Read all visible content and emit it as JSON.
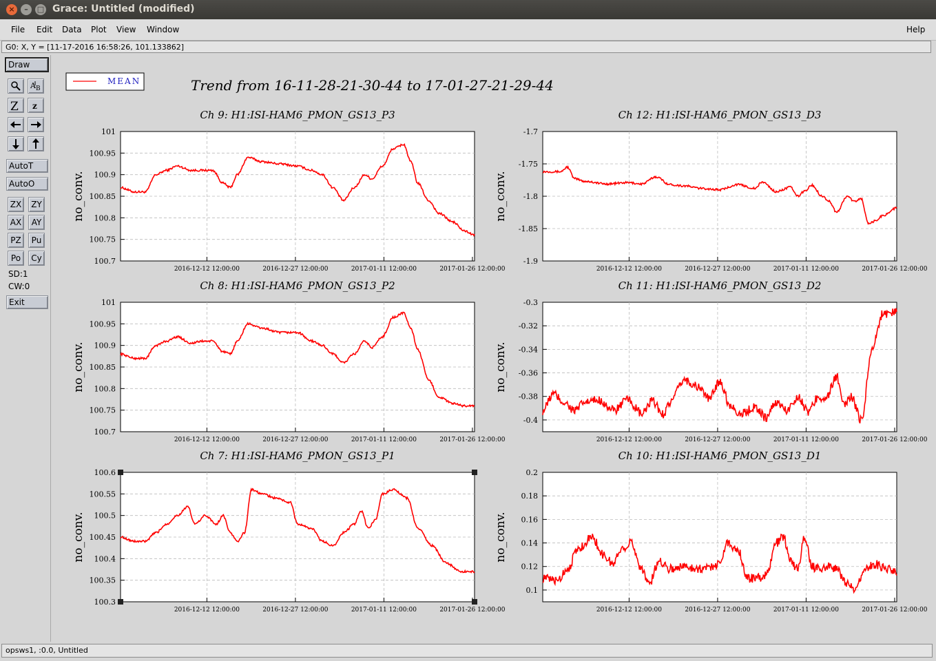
{
  "window": {
    "title": "Grace: Untitled (modified)",
    "close_glyph": "×",
    "min_glyph": "–",
    "max_glyph": "□"
  },
  "menu": {
    "file": "File",
    "edit": "Edit",
    "data": "Data",
    "plot": "Plot",
    "view": "View",
    "window": "Window",
    "help": "Help"
  },
  "locator": "G0: X, Y = [11-17-2016 16:58:26, 101.133862]",
  "toolbar": {
    "draw": "Draw",
    "icons": [
      "magnifier-icon",
      "text-ab-icon",
      "zoom-z-icon",
      "zoom-z-small-icon",
      "arrow-left-icon",
      "arrow-right-icon",
      "arrow-down-icon",
      "arrow-up-icon"
    ],
    "autot": "AutoT",
    "autoo": "AutoO",
    "zx": "ZX",
    "zy": "ZY",
    "ax": "AX",
    "ay": "AY",
    "pz": "PZ",
    "pu": "Pu",
    "po": "Po",
    "cy": "Cy",
    "sd": "SD:1",
    "cw": "CW:0",
    "exit": "Exit"
  },
  "status": "opsws1, :0.0, Untitled",
  "legend": {
    "label": "MEAN",
    "color": "#ff0000"
  },
  "main_title": "Trend from 16-11-28-21-30-44 to 17-01-27-21-29-44",
  "chart_data": [
    {
      "type": "line",
      "title": "Ch 9: H1:ISI-HAM6_PMON_GS13_P3",
      "ylabel": "no_conv.",
      "xlabel": "",
      "ylim": [
        100.7,
        101
      ],
      "yticks": [
        "100.7",
        "100.75",
        "100.8",
        "100.85",
        "100.9",
        "100.95",
        "101"
      ],
      "xticks": [
        "2016-12-12 12:00:00",
        "2016-12-27 12:00:00",
        "2017-01-11 12:00:00",
        "2017-01-26 12:00:00"
      ],
      "grid": true,
      "series": [
        {
          "name": "MEAN",
          "color": "#ff0000",
          "x": [
            0,
            0.04,
            0.07,
            0.1,
            0.13,
            0.16,
            0.2,
            0.23,
            0.26,
            0.29,
            0.31,
            0.33,
            0.36,
            0.4,
            0.45,
            0.5,
            0.54,
            0.57,
            0.6,
            0.63,
            0.66,
            0.69,
            0.71,
            0.74,
            0.77,
            0.8,
            0.82,
            0.84,
            0.87,
            0.9,
            0.94,
            0.97,
            1
          ],
          "y": [
            100.87,
            100.86,
            100.86,
            100.9,
            100.91,
            100.92,
            100.91,
            100.91,
            100.91,
            100.88,
            100.87,
            100.9,
            100.94,
            100.93,
            100.925,
            100.92,
            100.91,
            100.9,
            100.87,
            100.84,
            100.87,
            100.9,
            100.89,
            100.92,
            100.96,
            100.97,
            100.93,
            100.88,
            100.84,
            100.81,
            100.79,
            100.77,
            100.76
          ]
        }
      ]
    },
    {
      "type": "line",
      "title": "Ch 12: H1:ISI-HAM6_PMON_GS13_D3",
      "ylabel": "no_conv.",
      "xlabel": "",
      "ylim": [
        -1.9,
        -1.7
      ],
      "yticks": [
        "-1.9",
        "-1.85",
        "-1.8",
        "-1.75",
        "-1.7"
      ],
      "xticks": [
        "2016-12-12 12:00:00",
        "2016-12-27 12:00:00",
        "2017-01-11 12:00:00",
        "2017-01-26 12:00:00"
      ],
      "grid": true,
      "series": [
        {
          "name": "MEAN",
          "color": "#ff0000",
          "x": [
            0,
            0.05,
            0.07,
            0.09,
            0.12,
            0.18,
            0.24,
            0.28,
            0.32,
            0.36,
            0.4,
            0.45,
            0.5,
            0.55,
            0.6,
            0.62,
            0.66,
            0.7,
            0.72,
            0.74,
            0.76,
            0.79,
            0.81,
            0.83,
            0.86,
            0.88,
            0.9,
            0.92,
            0.94,
            0.96,
            1
          ],
          "y": [
            -1.762,
            -1.762,
            -1.755,
            -1.773,
            -1.777,
            -1.781,
            -1.779,
            -1.781,
            -1.77,
            -1.782,
            -1.784,
            -1.788,
            -1.79,
            -1.782,
            -1.788,
            -1.778,
            -1.793,
            -1.786,
            -1.8,
            -1.792,
            -1.783,
            -1.8,
            -1.808,
            -1.825,
            -1.8,
            -1.808,
            -1.804,
            -1.843,
            -1.838,
            -1.83,
            -1.818
          ]
        }
      ]
    },
    {
      "type": "line",
      "title": "Ch 8: H1:ISI-HAM6_PMON_GS13_P2",
      "ylabel": "no_conv.",
      "xlabel": "",
      "ylim": [
        100.7,
        101
      ],
      "yticks": [
        "100.7",
        "100.75",
        "100.8",
        "100.85",
        "100.9",
        "100.95",
        "101"
      ],
      "xticks": [
        "2016-12-12 12:00:00",
        "2016-12-27 12:00:00",
        "2017-01-11 12:00:00",
        "2017-01-26 12:00:00"
      ],
      "grid": true,
      "series": [
        {
          "name": "MEAN",
          "color": "#ff0000",
          "x": [
            0,
            0.04,
            0.07,
            0.1,
            0.13,
            0.16,
            0.2,
            0.23,
            0.26,
            0.29,
            0.31,
            0.33,
            0.36,
            0.4,
            0.45,
            0.5,
            0.54,
            0.57,
            0.6,
            0.63,
            0.66,
            0.69,
            0.71,
            0.74,
            0.77,
            0.8,
            0.82,
            0.84,
            0.87,
            0.9,
            0.94,
            0.97,
            1
          ],
          "y": [
            100.88,
            100.87,
            100.87,
            100.9,
            100.91,
            100.92,
            100.905,
            100.91,
            100.91,
            100.885,
            100.88,
            100.91,
            100.95,
            100.94,
            100.93,
            100.93,
            100.91,
            100.9,
            100.88,
            100.86,
            100.88,
            100.91,
            100.895,
            100.92,
            100.965,
            100.975,
            100.94,
            100.89,
            100.82,
            100.78,
            100.765,
            100.76,
            100.76
          ]
        }
      ]
    },
    {
      "type": "line",
      "title": "Ch 11: H1:ISI-HAM6_PMON_GS13_D2",
      "ylabel": "no_conv.",
      "xlabel": "",
      "ylim": [
        -0.41,
        -0.3
      ],
      "yticks": [
        "-0.4",
        "-0.38",
        "-0.36",
        "-0.34",
        "-0.32",
        "-0.3"
      ],
      "xticks": [
        "2016-12-12 12:00:00",
        "2016-12-27 12:00:00",
        "2017-01-11 12:00:00",
        "2017-01-26 12:00:00"
      ],
      "grid": true,
      "series": [
        {
          "name": "MEAN",
          "color": "#ff0000",
          "x": [
            0,
            0.03,
            0.06,
            0.09,
            0.12,
            0.16,
            0.2,
            0.24,
            0.28,
            0.31,
            0.34,
            0.36,
            0.4,
            0.44,
            0.47,
            0.5,
            0.53,
            0.56,
            0.6,
            0.63,
            0.66,
            0.69,
            0.72,
            0.75,
            0.78,
            0.8,
            0.83,
            0.85,
            0.87,
            0.9,
            0.93,
            0.96,
            1
          ],
          "y": [
            -0.392,
            -0.378,
            -0.385,
            -0.392,
            -0.385,
            -0.383,
            -0.392,
            -0.383,
            -0.395,
            -0.384,
            -0.395,
            -0.385,
            -0.366,
            -0.372,
            -0.382,
            -0.367,
            -0.388,
            -0.395,
            -0.389,
            -0.398,
            -0.385,
            -0.392,
            -0.38,
            -0.393,
            -0.38,
            -0.382,
            -0.363,
            -0.388,
            -0.38,
            -0.4,
            -0.34,
            -0.31,
            -0.308
          ]
        }
      ]
    },
    {
      "type": "line",
      "title": "Ch 7: H1:ISI-HAM6_PMON_GS13_P1",
      "ylabel": "no_conv.",
      "xlabel": "",
      "ylim": [
        100.3,
        100.6
      ],
      "yticks": [
        "100.3",
        "100.35",
        "100.4",
        "100.45",
        "100.5",
        "100.55",
        "100.6"
      ],
      "xticks": [
        "2016-12-12 12:00:00",
        "2016-12-27 12:00:00",
        "2017-01-11 12:00:00",
        "2017-01-26 12:00:00"
      ],
      "grid": true,
      "series": [
        {
          "name": "MEAN",
          "color": "#ff0000",
          "x": [
            0,
            0.04,
            0.07,
            0.1,
            0.13,
            0.16,
            0.19,
            0.21,
            0.24,
            0.27,
            0.29,
            0.31,
            0.33,
            0.35,
            0.37,
            0.4,
            0.44,
            0.48,
            0.5,
            0.54,
            0.57,
            0.6,
            0.63,
            0.66,
            0.68,
            0.7,
            0.72,
            0.74,
            0.77,
            0.81,
            0.84,
            0.88,
            0.92,
            0.96,
            1
          ],
          "y": [
            100.45,
            100.44,
            100.44,
            100.46,
            100.48,
            100.5,
            100.52,
            100.48,
            100.5,
            100.48,
            100.5,
            100.46,
            100.44,
            100.46,
            100.56,
            100.55,
            100.54,
            100.53,
            100.48,
            100.47,
            100.44,
            100.43,
            100.46,
            100.48,
            100.51,
            100.47,
            100.49,
            100.55,
            100.56,
            100.54,
            100.47,
            100.43,
            100.39,
            100.37,
            100.37
          ]
        }
      ]
    },
    {
      "type": "line",
      "title": "Ch 10: H1:ISI-HAM6_PMON_GS13_D1",
      "ylabel": "no_conv.",
      "xlabel": "",
      "ylim": [
        0.09,
        0.2
      ],
      "yticks": [
        "0.1",
        "0.12",
        "0.14",
        "0.16",
        "0.18",
        "0.2"
      ],
      "xticks": [
        "2016-12-12 12:00:00",
        "2016-12-27 12:00:00",
        "2017-01-11 12:00:00",
        "2017-01-26 12:00:00"
      ],
      "grid": true,
      "series": [
        {
          "name": "MEAN",
          "color": "#ff0000",
          "x": [
            0,
            0.04,
            0.07,
            0.1,
            0.14,
            0.17,
            0.2,
            0.22,
            0.25,
            0.28,
            0.3,
            0.33,
            0.36,
            0.4,
            0.45,
            0.5,
            0.52,
            0.55,
            0.58,
            0.6,
            0.63,
            0.66,
            0.68,
            0.7,
            0.72,
            0.74,
            0.76,
            0.78,
            0.8,
            0.83,
            0.86,
            0.88,
            0.91,
            0.94,
            0.97,
            1
          ],
          "y": [
            0.11,
            0.108,
            0.118,
            0.135,
            0.145,
            0.13,
            0.122,
            0.135,
            0.14,
            0.118,
            0.105,
            0.125,
            0.118,
            0.12,
            0.118,
            0.122,
            0.14,
            0.135,
            0.11,
            0.11,
            0.112,
            0.14,
            0.145,
            0.125,
            0.118,
            0.145,
            0.12,
            0.118,
            0.12,
            0.118,
            0.105,
            0.1,
            0.118,
            0.122,
            0.118,
            0.115
          ]
        }
      ]
    }
  ]
}
